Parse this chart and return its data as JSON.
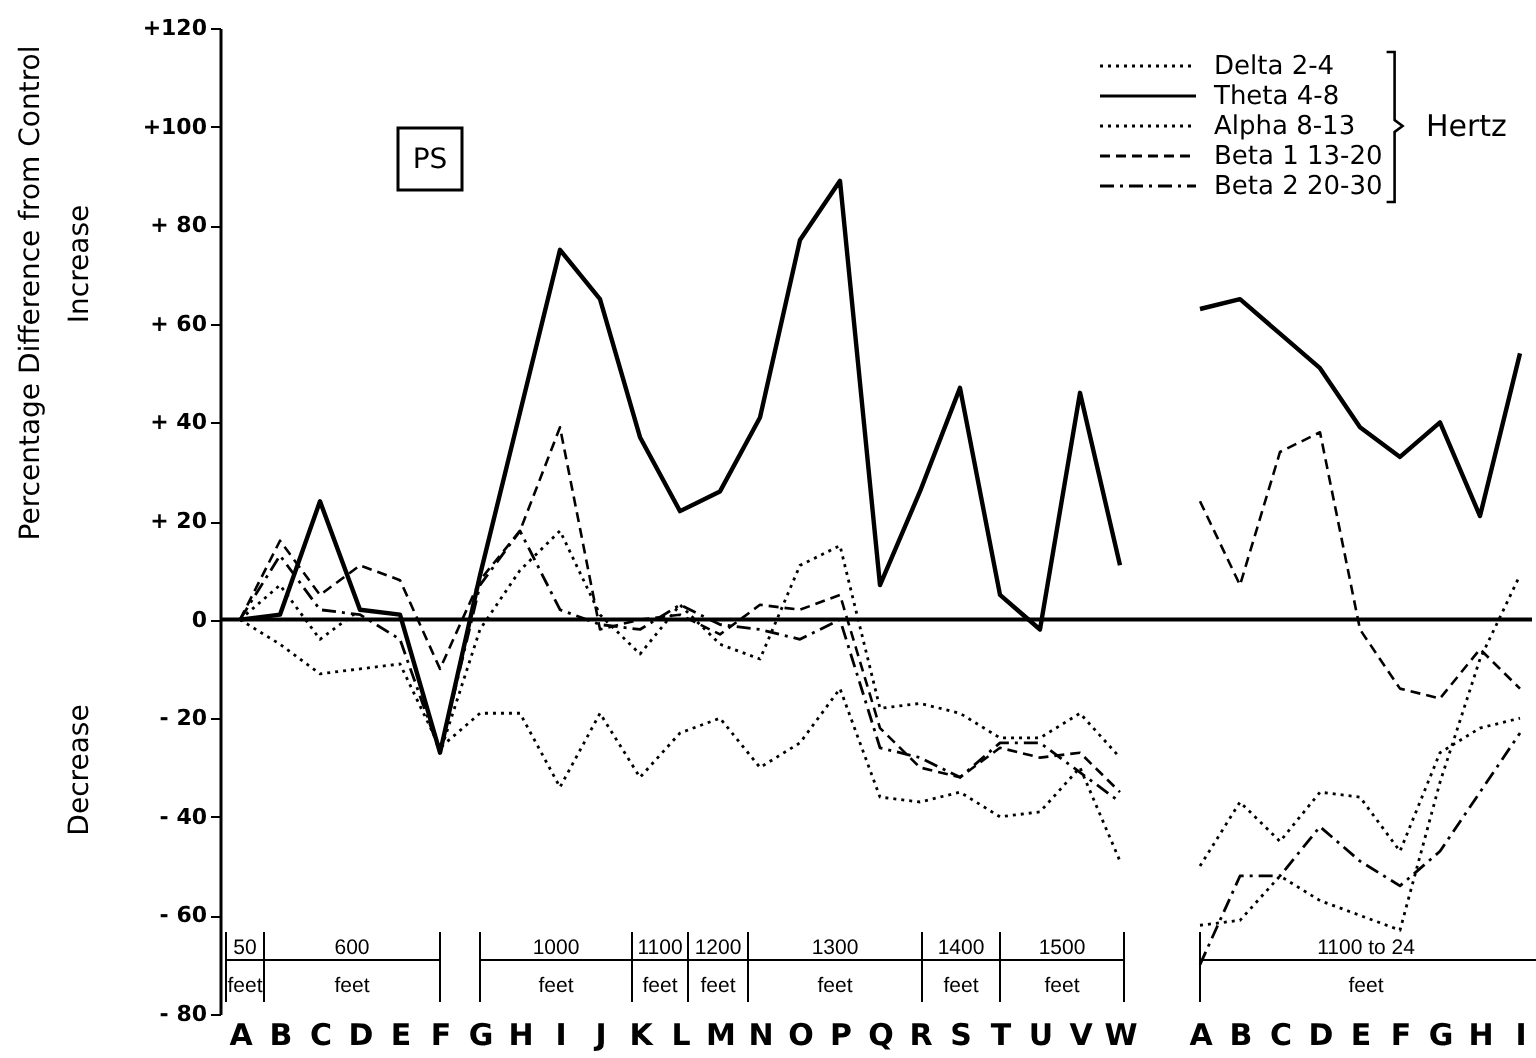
{
  "chart_data": {
    "type": "line",
    "ylabel": "Percentage Difference from Control",
    "legend_title": "Hertz",
    "legend": "top right",
    "annotations": [
      "PS",
      "Increase",
      "Decrease",
      "50 feet",
      "600 feet",
      "1000 feet",
      "1100 feet",
      "1200 feet",
      "1300 feet",
      "1400 feet",
      "1500 feet",
      "1100 to 24 feet"
    ],
    "categories": [
      "A",
      "B",
      "C",
      "D",
      "E",
      "F",
      "G",
      "H",
      "I",
      "J",
      "K",
      "L",
      "M",
      "N",
      "O",
      "P",
      "Q",
      "R",
      "S",
      "T",
      "U",
      "V",
      "W",
      null,
      "A",
      "B",
      "C",
      "D",
      "E",
      "F",
      "G",
      "H",
      "I"
    ],
    "series": [
      {
        "name": "Delta 2-4",
        "color": "#000000",
        "line_style": "dotted",
        "values": [
          0,
          -5,
          -11,
          -10,
          -9,
          -26,
          -19,
          -19,
          -34,
          -19,
          -32,
          -23,
          -20,
          -30,
          -25,
          -14,
          -36,
          -37,
          -35,
          -40,
          -39,
          -30,
          -49,
          null,
          -62,
          -61,
          -52,
          -57,
          -60,
          -63,
          -33,
          -8,
          9
        ]
      },
      {
        "name": "Theta 4-8",
        "color": "#000000",
        "line_style": "solid",
        "values": [
          0,
          1,
          24,
          2,
          1,
          -27,
          9,
          42,
          75,
          65,
          37,
          22,
          26,
          41,
          77,
          89,
          7,
          26,
          47,
          5,
          -2,
          46,
          11,
          null,
          63,
          65,
          58,
          51,
          39,
          33,
          40,
          21,
          54
        ]
      },
      {
        "name": "Alpha 8-13",
        "color": "#000000",
        "line_style": "dotted",
        "values": [
          0,
          7,
          -4,
          2,
          1,
          -27,
          -2,
          10,
          18,
          1,
          -7,
          3,
          -5,
          -8,
          11,
          15,
          -18,
          -17,
          -19,
          -24,
          -24,
          -19,
          -28,
          null,
          -50,
          -37,
          -45,
          -35,
          -36,
          -47,
          -27,
          -22,
          -20
        ]
      },
      {
        "name": "Beta 1 13-20",
        "color": "#000000",
        "line_style": "dashed",
        "values": [
          0,
          16,
          5,
          11,
          8,
          -10,
          8,
          18,
          39,
          -2,
          0,
          1,
          -3,
          3,
          2,
          5,
          -22,
          -30,
          -32,
          -26,
          -28,
          -27,
          -35,
          null,
          24,
          7,
          34,
          38,
          -2,
          -14,
          -16,
          -6,
          -14
        ]
      },
      {
        "name": "Beta 2 20-30",
        "color": "#000000",
        "line_style": "dashdot",
        "values": [
          0,
          13,
          2,
          1,
          -4,
          -27,
          7,
          18,
          2,
          -1,
          -2,
          3,
          -1,
          -2,
          -4,
          0,
          -26,
          -28,
          -32,
          -25,
          -25,
          -31,
          -37,
          null,
          -70,
          -52,
          -52,
          -42,
          -49,
          -54,
          -47,
          -35,
          -23
        ]
      }
    ],
    "ylim": [
      -80,
      120
    ],
    "yticks": [
      {
        "value": -80,
        "label": "- 80"
      },
      {
        "value": -60,
        "label": "- 60"
      },
      {
        "value": -40,
        "label": "- 40"
      },
      {
        "value": -20,
        "label": "- 20"
      },
      0,
      {
        "value": 20,
        "label": "+ 20"
      },
      {
        "value": 40,
        "label": "+ 40"
      },
      {
        "value": 60,
        "label": "+ 60"
      },
      {
        "value": 80,
        "label": "+ 80"
      },
      {
        "value": 100,
        "label": "+100"
      },
      {
        "value": 120,
        "label": "+120"
      }
    ],
    "ref_lines": [
      {
        "axis": "y",
        "value": 0
      }
    ]
  }
}
